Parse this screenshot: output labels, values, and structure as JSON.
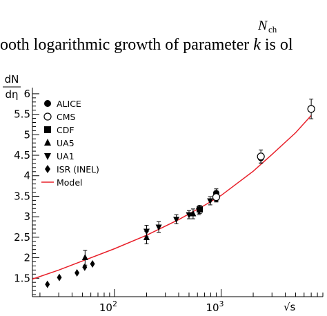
{
  "top_text": {
    "formula_fragment": "N",
    "formula_subscript": "ch",
    "caption_prefix": "ooth logarithmic growth of parameter ",
    "caption_var": "k",
    "caption_suffix": " is ol"
  },
  "chart_data": {
    "type": "scatter",
    "title": "",
    "ylabel_numerator": "dN",
    "ylabel_denominator": "dη",
    "xlabel": "√s",
    "xscale": "log",
    "xlim": [
      17,
      9000
    ],
    "ylim": [
      1.05,
      6.15
    ],
    "y_ticks": [
      {
        "value": 1.5,
        "label": "1.5"
      },
      {
        "value": 2,
        "label": "2"
      },
      {
        "value": 2.5,
        "label": "2.5"
      },
      {
        "value": 3,
        "label": "3"
      },
      {
        "value": 3.5,
        "label": "3.5"
      },
      {
        "value": 4,
        "label": "4"
      },
      {
        "value": 4.5,
        "label": "4.5"
      },
      {
        "value": 5,
        "label": "5"
      },
      {
        "value": 5.5,
        "label": "5.5"
      },
      {
        "value": 6,
        "label": "6"
      }
    ],
    "x_ticks": [
      {
        "value": 100,
        "base": "10",
        "exp": "2"
      },
      {
        "value": 1000,
        "base": "10",
        "exp": "3"
      }
    ],
    "legend_position": "top-left",
    "series": [
      {
        "name": "ALICE",
        "marker": "circle-filled",
        "points": [
          [
            900,
            3.58
          ],
          [
            2360,
            4.43
          ]
        ],
        "err": [
          0.1,
          0.12
        ]
      },
      {
        "name": "CMS",
        "marker": "circle-open",
        "points": [
          [
            900,
            3.48
          ],
          [
            2360,
            4.47
          ],
          [
            7000,
            5.63
          ]
        ],
        "err": [
          0.12,
          0.16,
          0.24
        ]
      },
      {
        "name": "CDF",
        "marker": "square-filled",
        "points": [
          [
            630,
            3.18
          ]
        ],
        "err": [
          0.1
        ]
      },
      {
        "name": "UA5",
        "marker": "triangle-up",
        "points": [
          [
            53,
            2.0
          ],
          [
            200,
            2.49
          ],
          [
            546,
            3.07
          ],
          [
            900,
            3.5
          ]
        ],
        "err": [
          0.18,
          0.15,
          0.12,
          0.12
        ]
      },
      {
        "name": "UA1",
        "marker": "triangle-down",
        "points": [
          [
            200,
            2.65
          ],
          [
            260,
            2.75
          ],
          [
            380,
            2.94
          ],
          [
            500,
            3.05
          ],
          [
            620,
            3.15
          ],
          [
            790,
            3.39
          ],
          [
            900,
            3.49
          ]
        ],
        "err": [
          0.14,
          0.13,
          0.11,
          0.1,
          0.1,
          0.1,
          0.1
        ]
      },
      {
        "name": "ISR (INEL)",
        "marker": "diamond",
        "points": [
          [
            23.5,
            1.35
          ],
          [
            30.4,
            1.52
          ],
          [
            44.5,
            1.63
          ],
          [
            52.6,
            1.77
          ],
          [
            62.2,
            1.85
          ]
        ],
        "err": [
          0,
          0,
          0,
          0,
          0
        ]
      },
      {
        "name": "Model",
        "marker": "line",
        "points": [
          [
            17,
            1.48
          ],
          [
            30,
            1.7
          ],
          [
            50,
            1.92
          ],
          [
            100,
            2.22
          ],
          [
            200,
            2.55
          ],
          [
            400,
            2.93
          ],
          [
            700,
            3.28
          ],
          [
            1000,
            3.52
          ],
          [
            2000,
            4.11
          ],
          [
            3000,
            4.52
          ],
          [
            5000,
            5.05
          ],
          [
            7000,
            5.47
          ]
        ]
      }
    ]
  },
  "colors": {
    "axis": "#000000",
    "markers": "#000000",
    "model_line": "#e8202a"
  }
}
